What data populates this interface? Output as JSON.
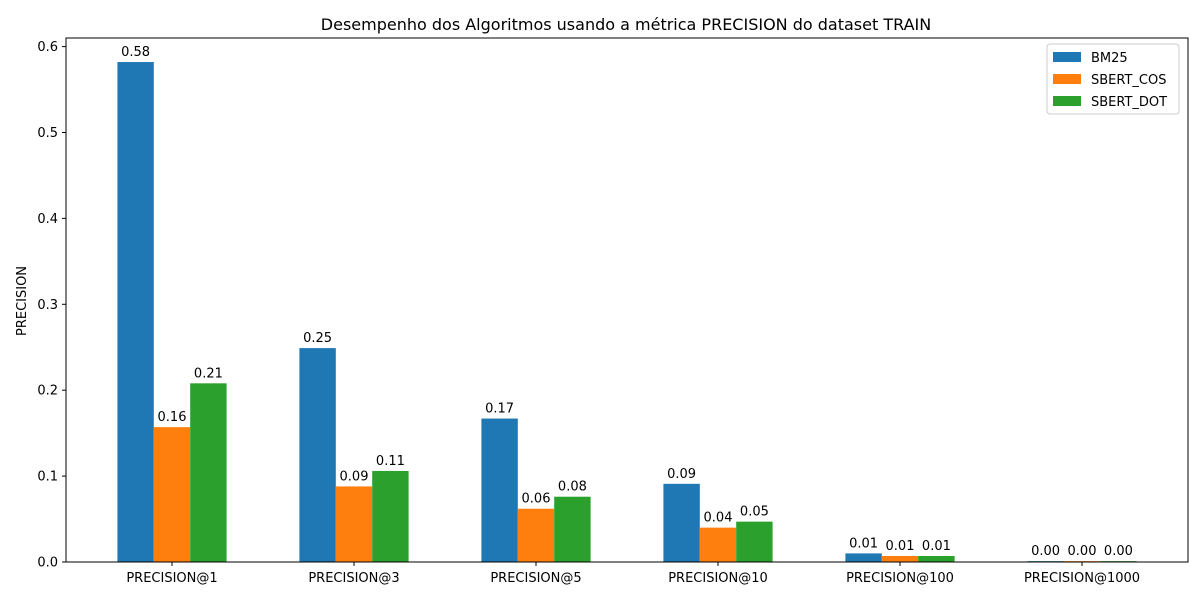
{
  "chart_data": {
    "type": "bar",
    "title": "Desempenho dos Algoritmos usando a métrica PRECISION do dataset TRAIN",
    "xlabel": "",
    "ylabel": "PRECISION",
    "ylim": [
      0,
      0.61
    ],
    "yticks": [
      0.0,
      0.1,
      0.2,
      0.3,
      0.4,
      0.5,
      0.6
    ],
    "ytick_labels": [
      "0.0",
      "0.1",
      "0.2",
      "0.3",
      "0.4",
      "0.5",
      "0.6"
    ],
    "categories": [
      "PRECISION@1",
      "PRECISION@3",
      "PRECISION@5",
      "PRECISION@10",
      "PRECISION@100",
      "PRECISION@1000"
    ],
    "series": [
      {
        "name": "BM25",
        "color": "#1f77b4",
        "values": [
          0.582,
          0.249,
          0.167,
          0.091,
          0.01,
          0.001
        ],
        "labels": [
          "0.58",
          "0.25",
          "0.17",
          "0.09",
          "0.01",
          "0.00"
        ]
      },
      {
        "name": "SBERT_COS",
        "color": "#ff7f0e",
        "values": [
          0.157,
          0.088,
          0.062,
          0.04,
          0.007,
          0.001
        ],
        "labels": [
          "0.16",
          "0.09",
          "0.06",
          "0.04",
          "0.01",
          "0.00"
        ]
      },
      {
        "name": "SBERT_DOT",
        "color": "#2ca02c",
        "values": [
          0.208,
          0.106,
          0.076,
          0.047,
          0.007,
          0.001
        ],
        "labels": [
          "0.21",
          "0.11",
          "0.08",
          "0.05",
          "0.01",
          "0.00"
        ]
      }
    ],
    "grid": false,
    "legend_position": "top-right"
  }
}
